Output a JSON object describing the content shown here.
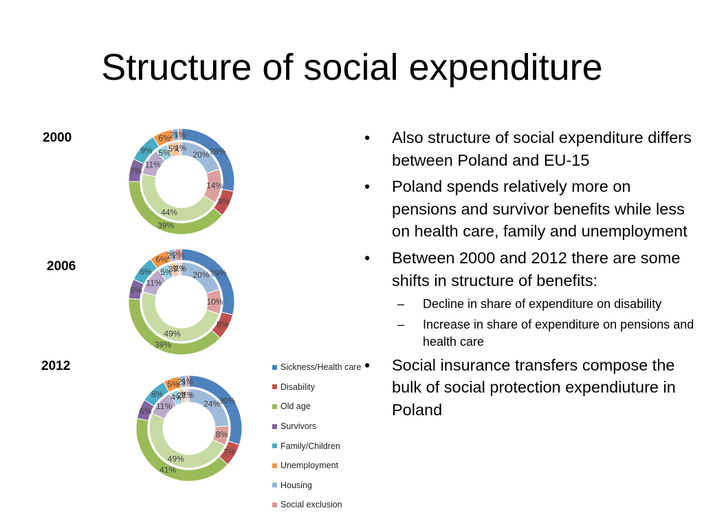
{
  "slide": {
    "title": "Structure of social expenditure"
  },
  "bullets": [
    {
      "level": 1,
      "text": "Also structure of social expenditure differs between Poland and EU-15"
    },
    {
      "level": 1,
      "text": "Poland spends relatively more on pensions and survivor benefits while less on health care, family and unemployment"
    },
    {
      "level": 1,
      "text": "Between 2000 and 2012 there are some shifts in structure of benefits:"
    },
    {
      "level": 2,
      "text": "Decline in share of expenditure on disability"
    },
    {
      "level": 2,
      "text": "Increase in share of expenditure on pensions and health care"
    },
    {
      "level": 1,
      "text": "Social insurance transfers compose the bulk of social protection expendiuture in Poland"
    }
  ],
  "bullet_marks": {
    "level1": "•",
    "level2": "–"
  },
  "legend": [
    {
      "label": "Sickness/Health care",
      "color": "#4F81BD"
    },
    {
      "label": "Disability",
      "color": "#C0504D"
    },
    {
      "label": "Old age",
      "color": "#9BBB59"
    },
    {
      "label": "Survivors",
      "color": "#8064A2"
    },
    {
      "label": "Family/Children",
      "color": "#4BACC6"
    },
    {
      "label": "Unemployment",
      "color": "#F79646"
    },
    {
      "label": "Housing",
      "color": "#95B3D7"
    },
    {
      "label": "Social exclusion",
      "color": "#D99694"
    }
  ],
  "chart_data": [
    {
      "type": "doughnut",
      "title": "2000",
      "categories": [
        "Sickness/Health care",
        "Disability",
        "Old age",
        "Survivors",
        "Family/Children",
        "Unemployment",
        "Housing",
        "Social exclusion"
      ],
      "series": [
        {
          "ring": "outer",
          "values": [
            28,
            8,
            39,
            7,
            9,
            6,
            2,
            1
          ]
        },
        {
          "ring": "inner",
          "values": [
            20,
            14,
            44,
            11,
            5,
            5,
            0,
            1
          ]
        }
      ]
    },
    {
      "type": "doughnut",
      "title": "2006",
      "categories": [
        "Sickness/Health care",
        "Disability",
        "Old age",
        "Survivors",
        "Family/Children",
        "Unemployment",
        "Housing",
        "Social exclusion"
      ],
      "series": [
        {
          "ring": "outer",
          "values": [
            29,
            8,
            39,
            6,
            8,
            6,
            2,
            2
          ]
        },
        {
          "ring": "inner",
          "values": [
            20,
            10,
            49,
            11,
            5,
            3,
            1,
            1
          ]
        }
      ]
    },
    {
      "type": "doughnut",
      "title": "2012",
      "categories": [
        "Sickness/Health care",
        "Disability",
        "Old age",
        "Survivors",
        "Family/Children",
        "Unemployment",
        "Housing",
        "Social exclusion"
      ],
      "series": [
        {
          "ring": "outer",
          "values": [
            30,
            7,
            41,
            6,
            8,
            5,
            2,
            1
          ]
        },
        {
          "ring": "inner",
          "values": [
            24,
            8,
            49,
            11,
            4,
            2,
            1,
            1
          ]
        }
      ]
    }
  ]
}
